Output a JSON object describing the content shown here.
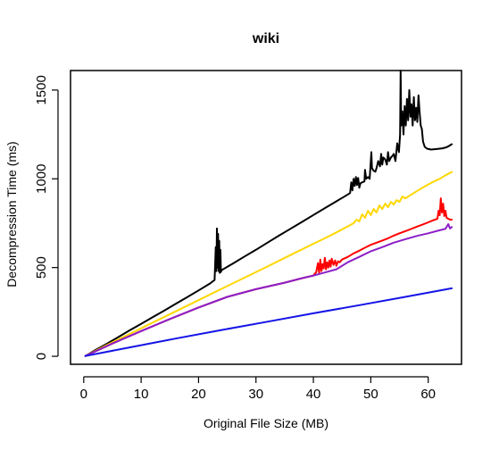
{
  "chart_data": {
    "type": "line",
    "title": "wiki",
    "xlabel": "Original File Size (MB)",
    "ylabel": "Decompression Time (ms)",
    "xlim": [
      -2.3,
      65.8
    ],
    "ylim": [
      -45,
      1610
    ],
    "x_ticks": [
      0,
      10,
      20,
      30,
      40,
      50,
      60
    ],
    "y_ticks": [
      0,
      500,
      1000,
      1500
    ],
    "grid": false,
    "legend": "none",
    "series": [
      {
        "color": "#000000",
        "points": [
          [
            0.3,
            2
          ],
          [
            2,
            35
          ],
          [
            4,
            70
          ],
          [
            6,
            108
          ],
          [
            8,
            146
          ],
          [
            10,
            183
          ],
          [
            12,
            220
          ],
          [
            14,
            257
          ],
          [
            16,
            295
          ],
          [
            18,
            333
          ],
          [
            20,
            371
          ],
          [
            22,
            410
          ],
          [
            22.8,
            430
          ],
          [
            23.0,
            615
          ],
          [
            23.1,
            480
          ],
          [
            23.2,
            720
          ],
          [
            23.3,
            500
          ],
          [
            23.4,
            690
          ],
          [
            23.5,
            480
          ],
          [
            23.6,
            650
          ],
          [
            23.7,
            470
          ],
          [
            23.8,
            600
          ],
          [
            23.9,
            475
          ],
          [
            24,
            485
          ],
          [
            26,
            523
          ],
          [
            28,
            562
          ],
          [
            30,
            600
          ],
          [
            32,
            640
          ],
          [
            34,
            680
          ],
          [
            36,
            718
          ],
          [
            38,
            757
          ],
          [
            40,
            796
          ],
          [
            42,
            835
          ],
          [
            44,
            873
          ],
          [
            46,
            912
          ],
          [
            46.4,
            920
          ],
          [
            46.6,
            980
          ],
          [
            46.8,
            935
          ],
          [
            47.0,
            1000
          ],
          [
            47.2,
            960
          ],
          [
            47.4,
            1010
          ],
          [
            47.6,
            965
          ],
          [
            47.8,
            1005
          ],
          [
            48.0,
            950
          ],
          [
            48.2,
            975
          ],
          [
            48.5,
            980
          ],
          [
            48.9,
            985
          ],
          [
            49.0,
            1050
          ],
          [
            49.2,
            1000
          ],
          [
            49.5,
            1010
          ],
          [
            49.8,
            1000
          ],
          [
            50.0,
            1100
          ],
          [
            50.1,
            1150
          ],
          [
            50.2,
            1060
          ],
          [
            50.5,
            1045
          ],
          [
            50.8,
            1040
          ],
          [
            51.0,
            1060
          ],
          [
            51.3,
            1100
          ],
          [
            51.6,
            1070
          ],
          [
            51.8,
            1140
          ],
          [
            52.0,
            1080
          ],
          [
            52.2,
            1120
          ],
          [
            52.5,
            1110
          ],
          [
            52.8,
            1080
          ],
          [
            53.0,
            1150
          ],
          [
            53.2,
            1100
          ],
          [
            53.5,
            1120
          ],
          [
            53.8,
            1130
          ],
          [
            54.0,
            1140
          ],
          [
            54.3,
            1100
          ],
          [
            54.6,
            1200
          ],
          [
            54.9,
            1150
          ],
          [
            55.1,
            1250
          ],
          [
            55.2,
            1610
          ],
          [
            55.3,
            1300
          ],
          [
            55.5,
            1380
          ],
          [
            55.7,
            1250
          ],
          [
            55.9,
            1410
          ],
          [
            56.1,
            1300
          ],
          [
            56.3,
            1450
          ],
          [
            56.5,
            1330
          ],
          [
            56.7,
            1500
          ],
          [
            56.9,
            1350
          ],
          [
            57.1,
            1420
          ],
          [
            57.3,
            1300
          ],
          [
            57.5,
            1460
          ],
          [
            57.7,
            1330
          ],
          [
            57.9,
            1400
          ],
          [
            58.1,
            1320
          ],
          [
            58.3,
            1470
          ],
          [
            58.5,
            1380
          ],
          [
            58.7,
            1300
          ],
          [
            58.9,
            1280
          ],
          [
            59.1,
            1210
          ],
          [
            59.4,
            1180
          ],
          [
            59.8,
            1170
          ],
          [
            60.5,
            1165
          ],
          [
            61.5,
            1168
          ],
          [
            62.5,
            1172
          ],
          [
            63.2,
            1178
          ],
          [
            63.6,
            1185
          ],
          [
            64.1,
            1195
          ]
        ]
      },
      {
        "color": "#FFD700",
        "points": [
          [
            0.3,
            2
          ],
          [
            4,
            63
          ],
          [
            8,
            126
          ],
          [
            12,
            190
          ],
          [
            16,
            253
          ],
          [
            20,
            316
          ],
          [
            24,
            380
          ],
          [
            28,
            443
          ],
          [
            32,
            506
          ],
          [
            36,
            570
          ],
          [
            40,
            634
          ],
          [
            42,
            665
          ],
          [
            44,
            698
          ],
          [
            46,
            732
          ],
          [
            47,
            750
          ],
          [
            47.5,
            770
          ],
          [
            48,
            760
          ],
          [
            48.5,
            800
          ],
          [
            49,
            780
          ],
          [
            49.5,
            820
          ],
          [
            50,
            795
          ],
          [
            50.5,
            830
          ],
          [
            51,
            810
          ],
          [
            51.5,
            850
          ],
          [
            52,
            830
          ],
          [
            52.5,
            860
          ],
          [
            53,
            840
          ],
          [
            53.5,
            870
          ],
          [
            54,
            855
          ],
          [
            54.5,
            880
          ],
          [
            55,
            870
          ],
          [
            55.5,
            900
          ],
          [
            56,
            890
          ],
          [
            57,
            910
          ],
          [
            58,
            930
          ],
          [
            59,
            950
          ],
          [
            60,
            968
          ],
          [
            61,
            985
          ],
          [
            62,
            1000
          ],
          [
            63,
            1020
          ],
          [
            64.1,
            1038
          ]
        ]
      },
      {
        "color": "#FF0000",
        "points": [
          [
            0.3,
            2
          ],
          [
            5,
            72
          ],
          [
            10,
            142
          ],
          [
            15,
            210
          ],
          [
            20,
            275
          ],
          [
            25,
            335
          ],
          [
            30,
            378
          ],
          [
            35,
            415
          ],
          [
            38,
            440
          ],
          [
            40,
            455
          ],
          [
            40.5,
            475
          ],
          [
            40.8,
            525
          ],
          [
            41.0,
            470
          ],
          [
            41.2,
            545
          ],
          [
            41.4,
            480
          ],
          [
            41.6,
            520
          ],
          [
            41.8,
            495
          ],
          [
            42.0,
            555
          ],
          [
            42.2,
            490
          ],
          [
            42.4,
            530
          ],
          [
            42.6,
            500
          ],
          [
            42.8,
            540
          ],
          [
            43.0,
            505
          ],
          [
            43.2,
            550
          ],
          [
            43.5,
            515
          ],
          [
            43.8,
            540
          ],
          [
            44.0,
            510
          ],
          [
            44.3,
            535
          ],
          [
            44.6,
            530
          ],
          [
            45.0,
            545
          ],
          [
            46,
            560
          ],
          [
            47,
            580
          ],
          [
            48,
            595
          ],
          [
            49,
            612
          ],
          [
            50,
            628
          ],
          [
            51,
            640
          ],
          [
            52,
            652
          ],
          [
            53,
            665
          ],
          [
            54,
            680
          ],
          [
            55,
            693
          ],
          [
            56,
            705
          ],
          [
            57,
            717
          ],
          [
            58,
            730
          ],
          [
            59,
            742
          ],
          [
            60,
            755
          ],
          [
            61,
            768
          ],
          [
            61.6,
            775
          ],
          [
            61.8,
            820
          ],
          [
            62.0,
            795
          ],
          [
            62.2,
            890
          ],
          [
            62.4,
            810
          ],
          [
            62.6,
            860
          ],
          [
            62.8,
            790
          ],
          [
            63.0,
            820
          ],
          [
            63.2,
            780
          ],
          [
            63.5,
            775
          ],
          [
            63.8,
            770
          ],
          [
            64.1,
            770
          ]
        ]
      },
      {
        "color": "#8B1FC8",
        "points": [
          [
            0.3,
            2
          ],
          [
            5,
            72
          ],
          [
            10,
            142
          ],
          [
            15,
            210
          ],
          [
            20,
            275
          ],
          [
            25,
            335
          ],
          [
            30,
            378
          ],
          [
            35,
            415
          ],
          [
            38,
            440
          ],
          [
            40,
            455
          ],
          [
            42,
            472
          ],
          [
            44,
            490
          ],
          [
            46,
            530
          ],
          [
            48,
            560
          ],
          [
            50,
            592
          ],
          [
            52,
            615
          ],
          [
            54,
            640
          ],
          [
            56,
            660
          ],
          [
            58,
            678
          ],
          [
            60,
            693
          ],
          [
            62,
            710
          ],
          [
            63,
            718
          ],
          [
            63.5,
            745
          ],
          [
            63.8,
            720
          ],
          [
            64.1,
            728
          ]
        ]
      },
      {
        "color": "#1414E6",
        "points": [
          [
            0.3,
            2
          ],
          [
            8,
            50
          ],
          [
            16,
            100
          ],
          [
            24,
            148
          ],
          [
            32,
            195
          ],
          [
            40,
            242
          ],
          [
            48,
            288
          ],
          [
            56,
            335
          ],
          [
            64.1,
            383
          ]
        ]
      }
    ]
  }
}
